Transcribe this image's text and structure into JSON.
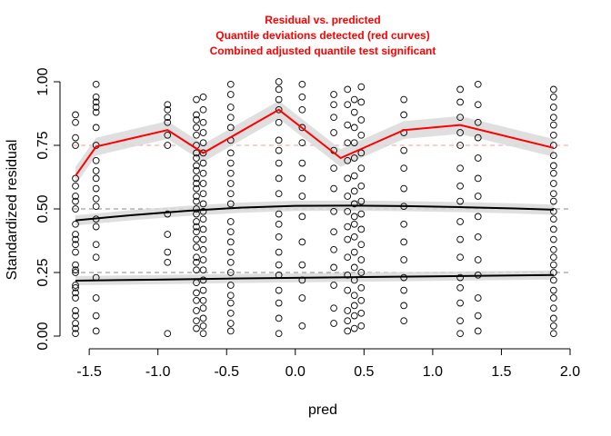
{
  "chart_data": {
    "type": "scatter",
    "title_lines": [
      "Residual vs. predicted",
      "Quantile deviations detected (red curves)",
      "Combined adjusted quantile test significant"
    ],
    "title_color": "#ff0000",
    "xlabel": "pred",
    "ylabel": "Standardized residual",
    "xlim": [
      -1.62,
      2.0
    ],
    "ylim": [
      0,
      1
    ],
    "x_ticks": [
      -1.5,
      -1.0,
      -0.5,
      0.0,
      0.5,
      1.0,
      1.5,
      2.0
    ],
    "x_tick_labels": [
      "-1.5",
      "-1.0",
      "-0.5",
      "0.0",
      "0.5",
      "1.0",
      "1.5",
      "2.0"
    ],
    "y_ticks": [
      0.0,
      0.25,
      0.5,
      0.75,
      1.0
    ],
    "y_tick_labels": [
      "0.00",
      "0.25",
      "0.50",
      "0.75",
      "1.00"
    ],
    "reference_lines": [
      {
        "y": 0.25,
        "color": "#888888"
      },
      {
        "y": 0.5,
        "color": "#888888"
      },
      {
        "y": 0.75,
        "color": "#ff9999"
      }
    ],
    "series": [
      {
        "role": "quantile-0.75",
        "color": "#ff0000",
        "x": [
          -1.6,
          -1.45,
          -0.93,
          -0.67,
          -0.12,
          0.33,
          0.79,
          1.2,
          1.88
        ],
        "y": [
          0.63,
          0.745,
          0.81,
          0.72,
          0.89,
          0.7,
          0.81,
          0.83,
          0.74
        ]
      },
      {
        "role": "quantile-0.5",
        "color": "#000000",
        "x": [
          -1.6,
          -1.2,
          -0.8,
          -0.4,
          0.0,
          0.4,
          0.8,
          1.2,
          1.6,
          1.88
        ],
        "y": [
          0.455,
          0.475,
          0.492,
          0.505,
          0.512,
          0.513,
          0.511,
          0.507,
          0.502,
          0.497
        ]
      },
      {
        "role": "quantile-0.25",
        "color": "#000000",
        "x": [
          -1.6,
          -1.0,
          -0.5,
          0.0,
          0.5,
          1.0,
          1.5,
          1.88
        ],
        "y": [
          0.218,
          0.222,
          0.226,
          0.229,
          0.232,
          0.235,
          0.238,
          0.24
        ]
      }
    ],
    "points_x": [
      -1.6,
      -1.45,
      -0.93,
      -0.72,
      -0.67,
      -0.47,
      -0.12,
      0.05,
      0.28,
      0.38,
      0.43,
      0.48,
      0.79,
      1.2,
      1.33,
      1.88
    ],
    "points_y": [
      [
        0.01,
        0.03,
        0.05,
        0.08,
        0.1,
        0.15,
        0.17,
        0.19,
        0.2,
        0.25,
        0.26,
        0.28,
        0.33,
        0.36,
        0.38,
        0.4,
        0.44,
        0.5,
        0.53,
        0.55,
        0.59,
        0.62,
        0.75,
        0.78,
        0.84,
        0.87
      ],
      [
        0.02,
        0.08,
        0.15,
        0.23,
        0.31,
        0.36,
        0.43,
        0.46,
        0.51,
        0.54,
        0.58,
        0.62,
        0.65,
        0.69,
        0.75,
        0.82,
        0.88,
        0.9,
        0.92,
        0.94,
        0.99
      ],
      [
        0.01,
        0.29,
        0.33,
        0.4,
        0.48,
        0.75,
        0.79,
        0.84,
        0.86,
        0.89,
        0.91
      ],
      [
        0.03,
        0.06,
        0.1,
        0.14,
        0.17,
        0.21,
        0.26,
        0.29,
        0.31,
        0.35,
        0.38,
        0.41,
        0.43,
        0.45,
        0.48,
        0.5,
        0.53,
        0.55,
        0.58,
        0.6,
        0.62,
        0.65,
        0.67,
        0.7,
        0.72,
        0.75,
        0.79,
        0.82,
        0.85,
        0.87,
        0.93
      ],
      [
        0.01,
        0.04,
        0.07,
        0.11,
        0.14,
        0.18,
        0.22,
        0.26,
        0.3,
        0.34,
        0.38,
        0.42,
        0.46,
        0.49,
        0.52,
        0.56,
        0.6,
        0.64,
        0.68,
        0.72,
        0.76,
        0.8,
        0.84,
        0.89,
        0.94
      ],
      [
        0.02,
        0.05,
        0.09,
        0.13,
        0.16,
        0.2,
        0.25,
        0.29,
        0.33,
        0.37,
        0.41,
        0.45,
        0.52,
        0.56,
        0.6,
        0.64,
        0.68,
        0.72,
        0.77,
        0.82,
        0.86,
        0.9,
        0.95,
        0.99
      ],
      [
        0.01,
        0.07,
        0.13,
        0.18,
        0.24,
        0.28,
        0.33,
        0.39,
        0.44,
        0.48,
        0.56,
        0.62,
        0.68,
        0.73,
        0.77,
        0.84,
        0.89,
        0.93,
        0.97,
        1.0
      ],
      [
        0.04,
        0.15,
        0.22,
        0.28,
        0.37,
        0.47,
        0.55,
        0.62,
        0.68,
        0.76,
        0.82,
        0.89,
        0.94,
        0.99
      ],
      [
        0.05,
        0.11,
        0.2,
        0.27,
        0.34,
        0.41,
        0.49,
        0.58,
        0.66,
        0.73,
        0.8,
        0.86,
        0.91,
        0.95
      ],
      [
        0.02,
        0.06,
        0.1,
        0.18,
        0.24,
        0.31,
        0.38,
        0.43,
        0.49,
        0.55,
        0.62,
        0.69,
        0.76,
        0.83,
        0.91,
        0.97
      ],
      [
        0.03,
        0.08,
        0.12,
        0.16,
        0.22,
        0.27,
        0.33,
        0.39,
        0.44,
        0.47,
        0.52,
        0.57,
        0.63,
        0.7,
        0.76,
        0.82,
        0.88,
        0.93
      ],
      [
        0.04,
        0.09,
        0.14,
        0.19,
        0.25,
        0.3,
        0.36,
        0.42,
        0.48,
        0.53,
        0.59,
        0.66,
        0.72,
        0.79,
        0.85,
        0.92,
        0.98
      ],
      [
        0.06,
        0.12,
        0.18,
        0.23,
        0.3,
        0.37,
        0.44,
        0.51,
        0.58,
        0.66,
        0.73,
        0.8,
        0.87,
        0.93
      ],
      [
        0.01,
        0.06,
        0.13,
        0.19,
        0.23,
        0.31,
        0.38,
        0.45,
        0.53,
        0.59,
        0.66,
        0.75,
        0.8,
        0.86,
        0.92,
        0.97
      ],
      [
        0.02,
        0.08,
        0.15,
        0.24,
        0.3,
        0.39,
        0.47,
        0.55,
        0.62,
        0.7,
        0.78,
        0.84,
        0.91,
        0.99
      ],
      [
        0.01,
        0.04,
        0.07,
        0.11,
        0.15,
        0.18,
        0.22,
        0.25,
        0.28,
        0.31,
        0.34,
        0.38,
        0.42,
        0.46,
        0.49,
        0.53,
        0.56,
        0.6,
        0.64,
        0.67,
        0.71,
        0.75,
        0.79,
        0.83,
        0.86,
        0.9,
        0.94,
        0.97
      ]
    ]
  }
}
